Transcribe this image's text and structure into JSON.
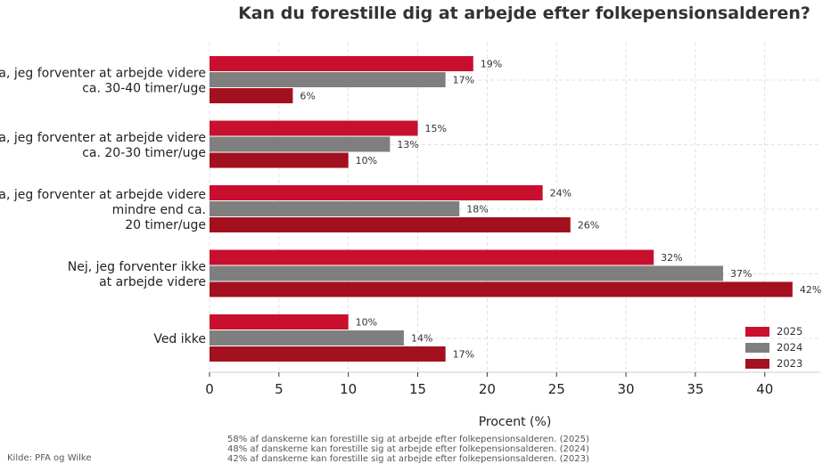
{
  "chart_data": {
    "type": "bar",
    "orientation": "horizontal",
    "title": "Kan du forestille dig at arbejde efter folkepensionsalderen?",
    "xlabel": "Procent (%)",
    "ylabel": "",
    "xlim": [
      0,
      44
    ],
    "xticks": [
      0,
      5,
      10,
      15,
      20,
      25,
      30,
      35,
      40
    ],
    "grid": true,
    "legend_position": "bottom-right",
    "categories": [
      [
        "Ja, jeg forventer at arbejde videre",
        "ca. 30-40 timer/uge"
      ],
      [
        "Ja, jeg forventer at arbejde videre",
        "ca. 20-30 timer/uge"
      ],
      [
        "Ja, jeg forventer at arbejde videre",
        "mindre end ca.",
        "20 timer/uge"
      ],
      [
        "Nej, jeg forventer ikke",
        "at arbejde videre"
      ],
      [
        "Ved ikke"
      ]
    ],
    "series": [
      {
        "name": "2025",
        "color": "#c8102e",
        "values": [
          19,
          15,
          24,
          32,
          10
        ],
        "labels": [
          "19%",
          "15%",
          "24%",
          "32%",
          "10%"
        ]
      },
      {
        "name": "2024",
        "color": "#7f7f7f",
        "values": [
          17,
          13,
          18,
          37,
          14
        ],
        "labels": [
          "17%",
          "13%",
          "18%",
          "37%",
          "14%"
        ]
      },
      {
        "name": "2023",
        "color": "#a3101e",
        "values": [
          6,
          10,
          26,
          42,
          17
        ],
        "labels": [
          "6%",
          "10%",
          "26%",
          "42%",
          "17%"
        ]
      }
    ]
  },
  "source": "Kilde: PFA og Wilke",
  "footnotes": [
    "58% af danskerne kan forestille sig at arbejde efter folkepensionsalderen. (2025)",
    "48% af danskerne kan forestille sig at arbejde efter folkepensionsalderen. (2024)",
    "42% af danskerne kan forestille sig at arbejde efter folkepensionsalderen. (2023)"
  ]
}
